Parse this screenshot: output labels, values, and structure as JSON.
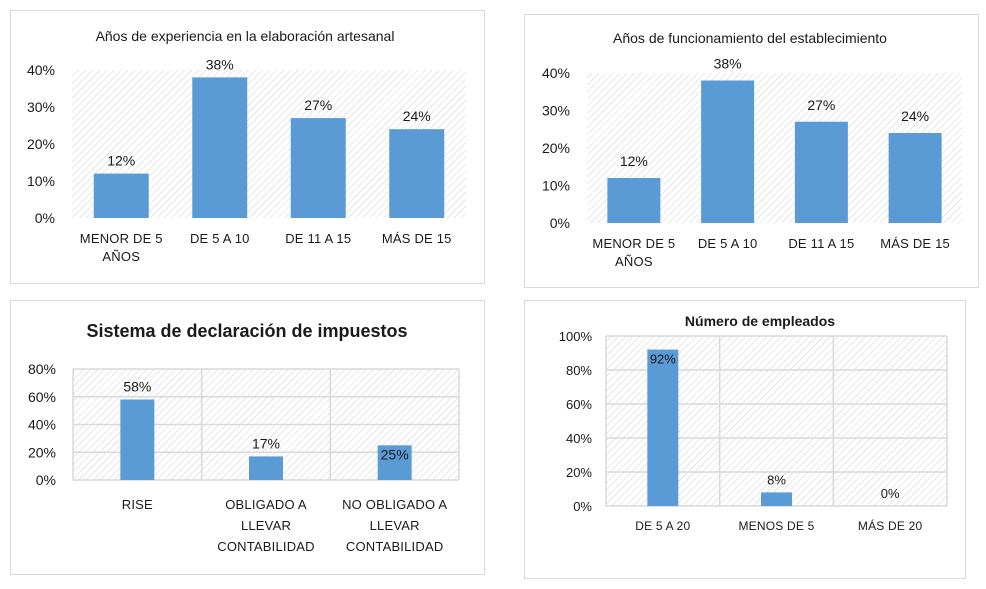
{
  "chart_data": [
    {
      "type": "bar",
      "title": "Años de experiencia en la elaboración artesanal",
      "categories": [
        [
          "MENOR DE 5",
          "AÑOS"
        ],
        [
          "DE 5 A 10"
        ],
        [
          "DE 11 A 15"
        ],
        [
          "MÁS DE 15"
        ]
      ],
      "values": [
        12,
        38,
        27,
        24
      ],
      "data_labels": [
        "12%",
        "38%",
        "27%",
        "24%"
      ],
      "yticks": [
        "0%",
        "10%",
        "20%",
        "30%",
        "40%"
      ],
      "ylim": [
        0,
        40
      ],
      "grid": false,
      "bar_color": "#5b9bd5",
      "background": "hatched"
    },
    {
      "type": "bar",
      "title": "Años de funcionamiento del establecimiento",
      "categories": [
        [
          "MENOR DE 5",
          "AÑOS"
        ],
        [
          "DE 5 A 10"
        ],
        [
          "DE 11 A 15"
        ],
        [
          "MÁS DE 15"
        ]
      ],
      "values": [
        12,
        38,
        27,
        24
      ],
      "data_labels": [
        "12%",
        "38%",
        "27%",
        "24%"
      ],
      "yticks": [
        "0%",
        "10%",
        "20%",
        "30%",
        "40%"
      ],
      "ylim": [
        0,
        40
      ],
      "grid": false,
      "bar_color": "#5b9bd5",
      "background": "hatched"
    },
    {
      "type": "bar",
      "title": "Sistema de declaración de impuestos",
      "categories": [
        [
          "RISE"
        ],
        [
          "OBLIGADO A",
          "LLEVAR",
          "CONTABILIDAD"
        ],
        [
          "NO OBLIGADO A",
          "LLEVAR",
          "CONTABILIDAD"
        ]
      ],
      "values": [
        58,
        17,
        25
      ],
      "data_labels": [
        "58%",
        "17%",
        "25%"
      ],
      "yticks": [
        "0%",
        "20%",
        "40%",
        "60%",
        "80%"
      ],
      "ylim": [
        0,
        80
      ],
      "grid": true,
      "bar_color": "#5b9bd5",
      "background": "hatched"
    },
    {
      "type": "bar",
      "title": "Número de empleados",
      "categories": [
        [
          "DE 5 A 20"
        ],
        [
          "MENOS DE 5"
        ],
        [
          "MÁS DE 20"
        ]
      ],
      "values": [
        92,
        8,
        0
      ],
      "data_labels": [
        "92%",
        "8%",
        "0%"
      ],
      "yticks": [
        "0%",
        "20%",
        "40%",
        "60%",
        "80%",
        "100%"
      ],
      "ylim": [
        0,
        100
      ],
      "grid": true,
      "bar_color": "#5b9bd5",
      "background": "hatched"
    }
  ]
}
